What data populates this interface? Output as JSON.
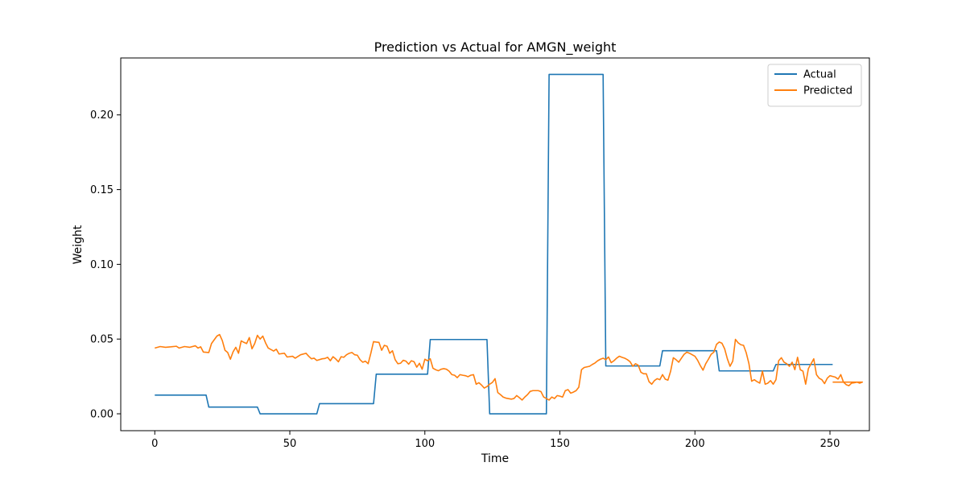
{
  "chart_data": {
    "type": "line",
    "title": "Prediction vs Actual for AMGN_weight",
    "xlabel": "Time",
    "ylabel": "Weight",
    "xlim": [
      -12.6,
      264.6
    ],
    "ylim": [
      -0.0113,
      0.2381
    ],
    "xticks": [
      0,
      50,
      100,
      150,
      200,
      250
    ],
    "yticks": [
      0.0,
      0.05,
      0.1,
      0.15,
      0.2
    ],
    "ytick_labels": [
      "0.00",
      "0.05",
      "0.10",
      "0.15",
      "0.20"
    ],
    "grid": false,
    "legend_position": "top-right",
    "series": [
      {
        "name": "Actual",
        "color": "#1f77b4",
        "points": [
          [
            0,
            0.0125
          ],
          [
            19,
            0.0125
          ],
          [
            20,
            0.0045
          ],
          [
            38,
            0.0045
          ],
          [
            39,
            0.0
          ],
          [
            60,
            0.0
          ],
          [
            61,
            0.0068
          ],
          [
            81,
            0.0068
          ],
          [
            82,
            0.0265
          ],
          [
            101,
            0.0265
          ],
          [
            102,
            0.0497
          ],
          [
            123,
            0.0497
          ],
          [
            124,
            0.0
          ],
          [
            145,
            0.0
          ],
          [
            146,
            0.2271
          ],
          [
            166,
            0.2271
          ],
          [
            167,
            0.032
          ],
          [
            187,
            0.032
          ],
          [
            188,
            0.0422
          ],
          [
            208,
            0.0422
          ],
          [
            209,
            0.0287
          ],
          [
            229,
            0.0287
          ],
          [
            230,
            0.033
          ],
          [
            251,
            0.033
          ]
        ]
      },
      {
        "name": "Predicted",
        "color": "#ff7f0e",
        "points": [
          [
            0,
            0.044
          ],
          [
            2,
            0.045
          ],
          [
            4,
            0.0445
          ],
          [
            6,
            0.0448
          ],
          [
            8,
            0.0452
          ],
          [
            9,
            0.044
          ],
          [
            11,
            0.045
          ],
          [
            13,
            0.0445
          ],
          [
            15,
            0.0455
          ],
          [
            16,
            0.044
          ],
          [
            17,
            0.0448
          ],
          [
            18,
            0.0413
          ],
          [
            20,
            0.041
          ],
          [
            21,
            0.047
          ],
          [
            23,
            0.052
          ],
          [
            24,
            0.053
          ],
          [
            25,
            0.049
          ],
          [
            26,
            0.0425
          ],
          [
            27,
            0.041
          ],
          [
            28,
            0.0365
          ],
          [
            29,
            0.0415
          ],
          [
            30,
            0.0445
          ],
          [
            31,
            0.0405
          ],
          [
            32,
            0.0488
          ],
          [
            33,
            0.0478
          ],
          [
            34,
            0.047
          ],
          [
            35,
            0.051
          ],
          [
            36,
            0.0435
          ],
          [
            37,
            0.047
          ],
          [
            38,
            0.0525
          ],
          [
            39,
            0.05
          ],
          [
            40,
            0.052
          ],
          [
            41,
            0.0475
          ],
          [
            42,
            0.044
          ],
          [
            44,
            0.042
          ],
          [
            45,
            0.0432
          ],
          [
            46,
            0.04
          ],
          [
            48,
            0.0405
          ],
          [
            49,
            0.038
          ],
          [
            51,
            0.0385
          ],
          [
            52,
            0.0372
          ],
          [
            54,
            0.0395
          ],
          [
            56,
            0.0405
          ],
          [
            57,
            0.0385
          ],
          [
            58,
            0.0368
          ],
          [
            59,
            0.0372
          ],
          [
            60,
            0.0357
          ],
          [
            62,
            0.0368
          ],
          [
            63,
            0.037
          ],
          [
            64,
            0.0378
          ],
          [
            65,
            0.0355
          ],
          [
            66,
            0.0382
          ],
          [
            67,
            0.0367
          ],
          [
            68,
            0.0348
          ],
          [
            69,
            0.0382
          ],
          [
            70,
            0.0378
          ],
          [
            71,
            0.0395
          ],
          [
            72,
            0.0405
          ],
          [
            73,
            0.041
          ],
          [
            74,
            0.0395
          ],
          [
            75,
            0.0392
          ],
          [
            76,
            0.0362
          ],
          [
            77,
            0.0345
          ],
          [
            78,
            0.0352
          ],
          [
            79,
            0.0335
          ],
          [
            80,
            0.0405
          ],
          [
            81,
            0.0483
          ],
          [
            82,
            0.048
          ],
          [
            83,
            0.0478
          ],
          [
            84,
            0.0425
          ],
          [
            85,
            0.0458
          ],
          [
            86,
            0.0452
          ],
          [
            87,
            0.0405
          ],
          [
            88,
            0.0422
          ],
          [
            89,
            0.0362
          ],
          [
            90,
            0.0335
          ],
          [
            91,
            0.0338
          ],
          [
            92,
            0.0358
          ],
          [
            93,
            0.0352
          ],
          [
            94,
            0.0332
          ],
          [
            95,
            0.0355
          ],
          [
            96,
            0.0348
          ],
          [
            97,
            0.0312
          ],
          [
            98,
            0.0338
          ],
          [
            99,
            0.0298
          ],
          [
            100,
            0.0365
          ],
          [
            101,
            0.0355
          ],
          [
            102,
            0.0368
          ],
          [
            103,
            0.0305
          ],
          [
            104,
            0.0295
          ],
          [
            105,
            0.0288
          ],
          [
            106,
            0.0298
          ],
          [
            107,
            0.0302
          ],
          [
            108,
            0.0298
          ],
          [
            109,
            0.0285
          ],
          [
            110,
            0.0262
          ],
          [
            111,
            0.0258
          ],
          [
            112,
            0.0242
          ],
          [
            113,
            0.0262
          ],
          [
            114,
            0.0258
          ],
          [
            115,
            0.0255
          ],
          [
            116,
            0.0248
          ],
          [
            117,
            0.0258
          ],
          [
            118,
            0.0262
          ],
          [
            119,
            0.0198
          ],
          [
            120,
            0.0208
          ],
          [
            121,
            0.0192
          ],
          [
            122,
            0.0172
          ],
          [
            123,
            0.0182
          ],
          [
            124,
            0.0198
          ],
          [
            125,
            0.021
          ],
          [
            126,
            0.0235
          ],
          [
            127,
            0.0142
          ],
          [
            128,
            0.0128
          ],
          [
            129,
            0.0112
          ],
          [
            130,
            0.0105
          ],
          [
            132,
            0.0098
          ],
          [
            133,
            0.0102
          ],
          [
            134,
            0.0122
          ],
          [
            135,
            0.0108
          ],
          [
            136,
            0.0092
          ],
          [
            137,
            0.0112
          ],
          [
            138,
            0.0128
          ],
          [
            139,
            0.015
          ],
          [
            140,
            0.0155
          ],
          [
            142,
            0.0155
          ],
          [
            143,
            0.0148
          ],
          [
            144,
            0.0112
          ],
          [
            145,
            0.0102
          ],
          [
            146,
            0.0092
          ],
          [
            147,
            0.0112
          ],
          [
            148,
            0.0102
          ],
          [
            149,
            0.0122
          ],
          [
            150,
            0.0118
          ],
          [
            151,
            0.0112
          ],
          [
            152,
            0.0155
          ],
          [
            153,
            0.0162
          ],
          [
            154,
            0.0138
          ],
          [
            155,
            0.0145
          ],
          [
            156,
            0.0155
          ],
          [
            157,
            0.0178
          ],
          [
            158,
            0.0295
          ],
          [
            159,
            0.031
          ],
          [
            161,
            0.0318
          ],
          [
            162,
            0.033
          ],
          [
            163,
            0.034
          ],
          [
            164,
            0.0355
          ],
          [
            165,
            0.0365
          ],
          [
            166,
            0.0372
          ],
          [
            167,
            0.0362
          ],
          [
            168,
            0.038
          ],
          [
            169,
            0.0342
          ],
          [
            170,
            0.0355
          ],
          [
            171,
            0.0372
          ],
          [
            172,
            0.0385
          ],
          [
            173,
            0.0378
          ],
          [
            174,
            0.0372
          ],
          [
            175,
            0.0362
          ],
          [
            176,
            0.0348
          ],
          [
            177,
            0.0318
          ],
          [
            178,
            0.0335
          ],
          [
            179,
            0.0325
          ],
          [
            180,
            0.0278
          ],
          [
            181,
            0.0268
          ],
          [
            182,
            0.0268
          ],
          [
            183,
            0.0215
          ],
          [
            184,
            0.0198
          ],
          [
            185,
            0.0222
          ],
          [
            186,
            0.0235
          ],
          [
            187,
            0.0228
          ],
          [
            188,
            0.0262
          ],
          [
            189,
            0.0232
          ],
          [
            190,
            0.0225
          ],
          [
            191,
            0.0285
          ],
          [
            192,
            0.0375
          ],
          [
            193,
            0.0362
          ],
          [
            194,
            0.0345
          ],
          [
            195,
            0.0372
          ],
          [
            196,
            0.0398
          ],
          [
            197,
            0.0412
          ],
          [
            198,
            0.0405
          ],
          [
            199,
            0.0395
          ],
          [
            200,
            0.0385
          ],
          [
            201,
            0.0358
          ],
          [
            202,
            0.0322
          ],
          [
            203,
            0.0292
          ],
          [
            204,
            0.0335
          ],
          [
            205,
            0.0365
          ],
          [
            206,
            0.0398
          ],
          [
            207,
            0.0412
          ],
          [
            208,
            0.0465
          ],
          [
            209,
            0.048
          ],
          [
            210,
            0.0472
          ],
          [
            211,
            0.0435
          ],
          [
            212,
            0.0368
          ],
          [
            213,
            0.0318
          ],
          [
            214,
            0.0352
          ],
          [
            215,
            0.0498
          ],
          [
            216,
            0.0475
          ],
          [
            217,
            0.0462
          ],
          [
            218,
            0.0458
          ],
          [
            219,
            0.0408
          ],
          [
            220,
            0.0335
          ],
          [
            221,
            0.0218
          ],
          [
            222,
            0.0228
          ],
          [
            223,
            0.0215
          ],
          [
            224,
            0.0205
          ],
          [
            225,
            0.0285
          ],
          [
            226,
            0.0198
          ],
          [
            227,
            0.0205
          ],
          [
            228,
            0.0222
          ],
          [
            229,
            0.0198
          ],
          [
            230,
            0.0228
          ],
          [
            231,
            0.0355
          ],
          [
            232,
            0.0375
          ],
          [
            233,
            0.0345
          ],
          [
            234,
            0.0335
          ],
          [
            235,
            0.0318
          ],
          [
            236,
            0.0345
          ],
          [
            237,
            0.0295
          ],
          [
            238,
            0.0378
          ],
          [
            239,
            0.0295
          ],
          [
            240,
            0.0285
          ],
          [
            241,
            0.0198
          ],
          [
            242,
            0.0302
          ],
          [
            243,
            0.0335
          ],
          [
            244,
            0.0368
          ],
          [
            245,
            0.0262
          ],
          [
            246,
            0.0238
          ],
          [
            247,
            0.0228
          ],
          [
            248,
            0.0202
          ],
          [
            249,
            0.0238
          ],
          [
            250,
            0.0255
          ],
          [
            251,
            0.025
          ],
          [
            252,
            0.0245
          ],
          [
            253,
            0.0232
          ],
          [
            254,
            0.0262
          ],
          [
            255,
            0.0212
          ],
          [
            256,
            0.0195
          ],
          [
            257,
            0.0188
          ],
          [
            258,
            0.0205
          ],
          [
            259,
            0.0208
          ],
          [
            260,
            0.0212
          ],
          [
            261,
            0.0205
          ],
          [
            262,
            0.0212
          ],
          [
            251,
            0.0212
          ]
        ]
      }
    ]
  }
}
